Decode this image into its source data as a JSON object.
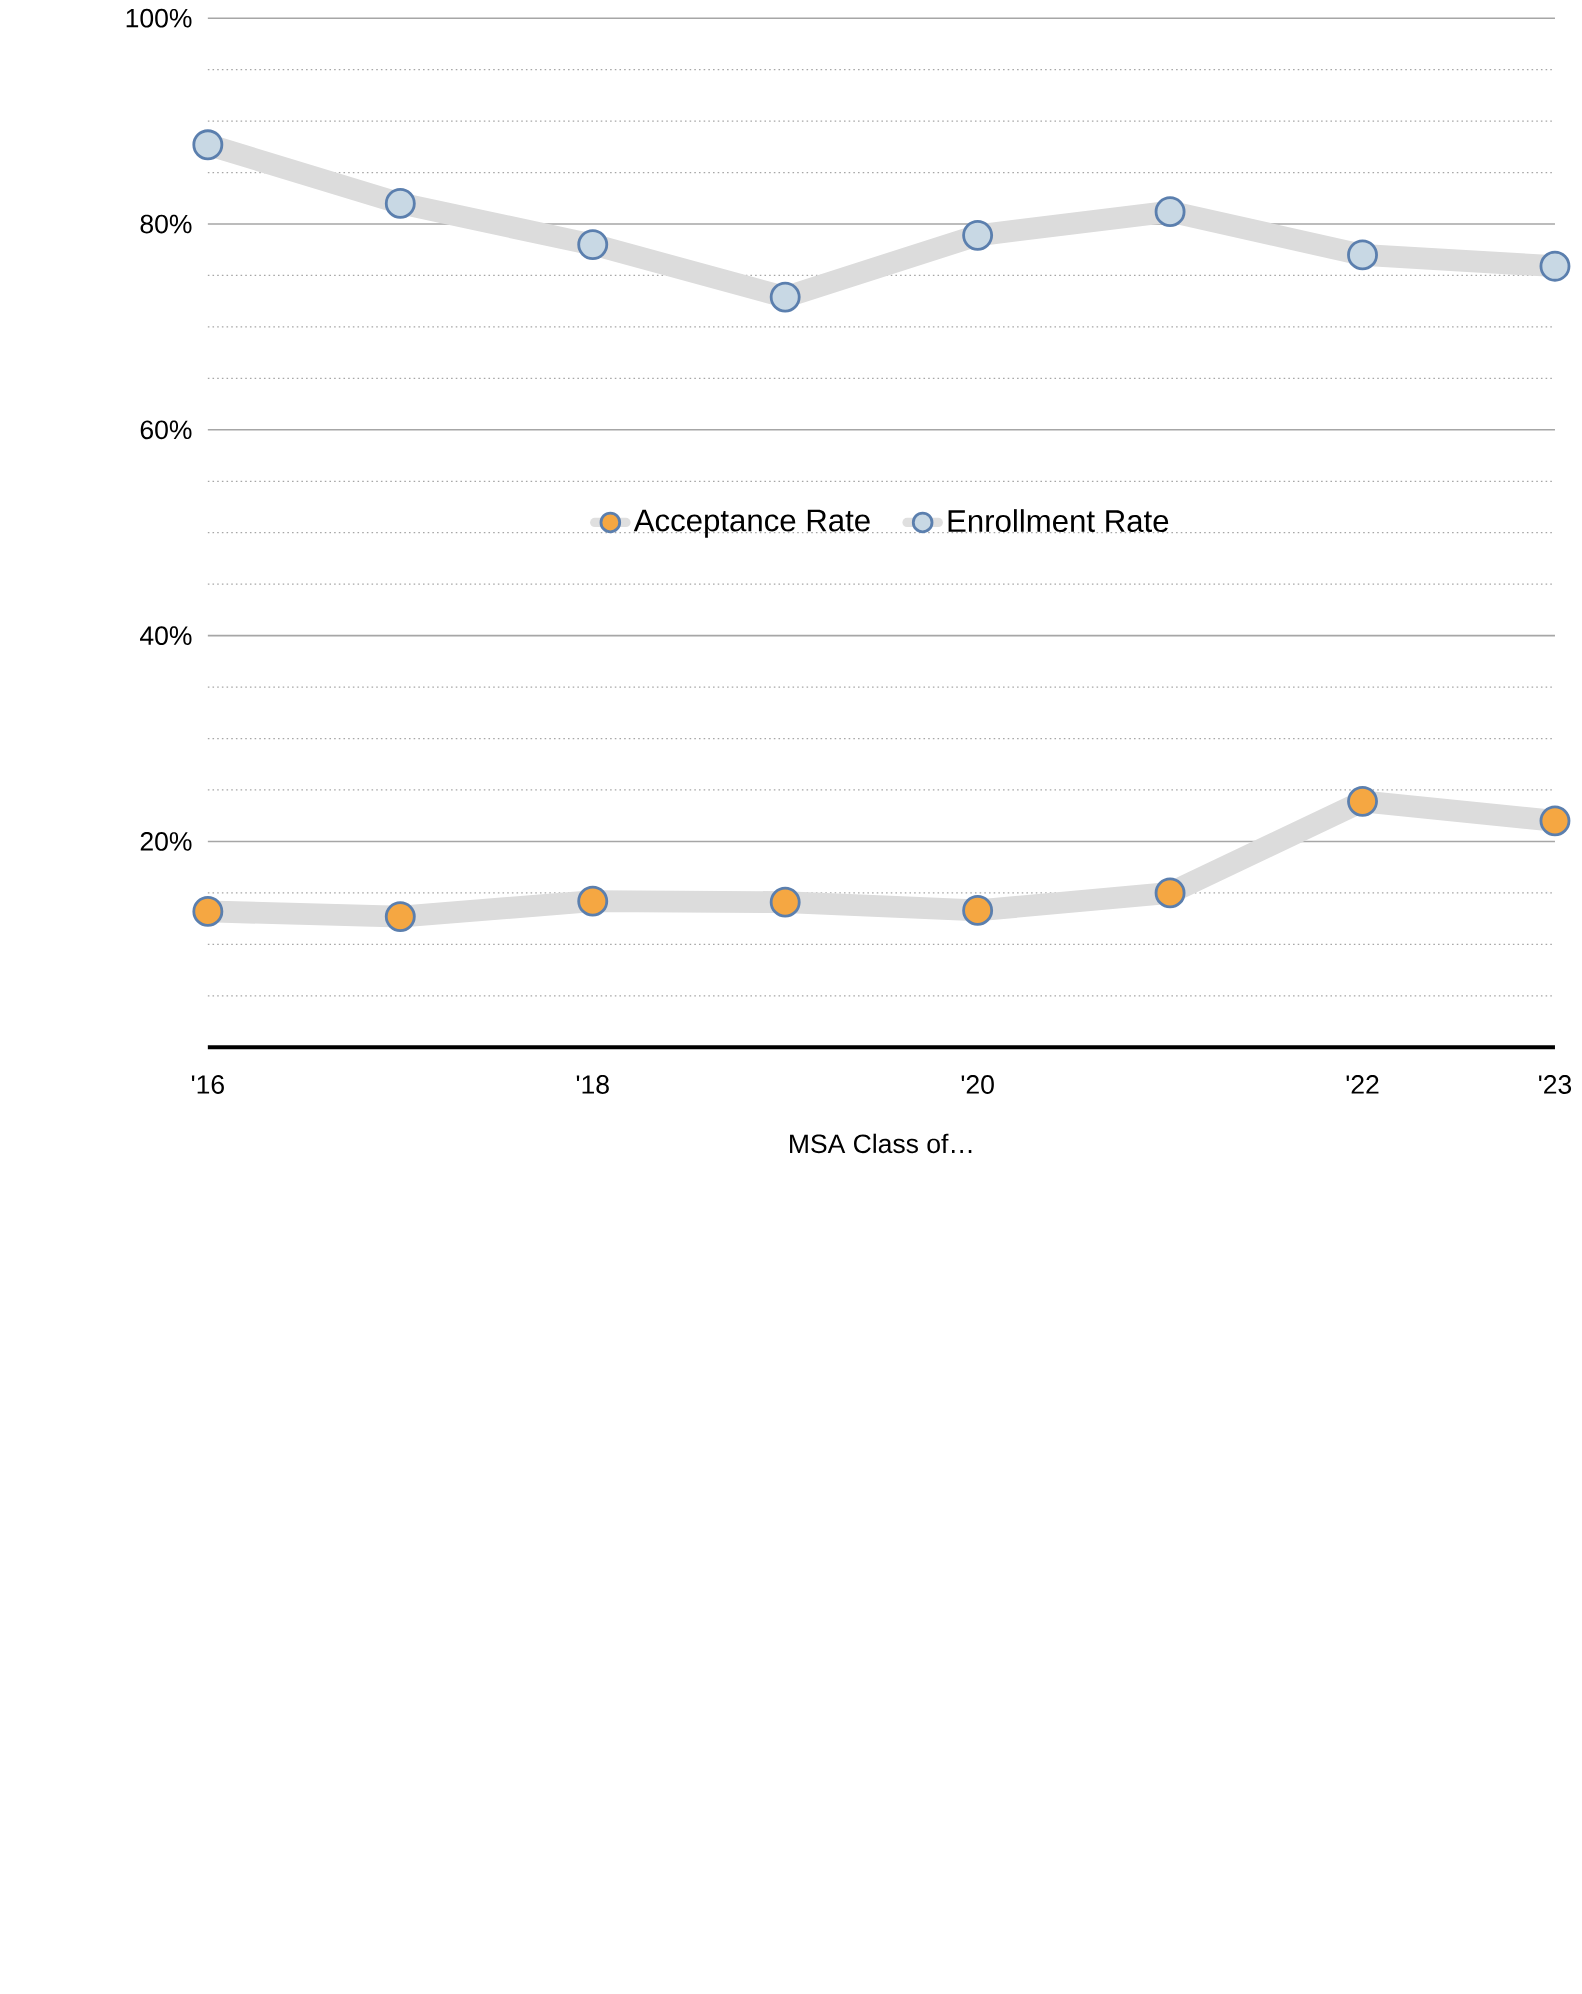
{
  "chart_data": {
    "type": "line",
    "xlabel": "MSA Class of…",
    "categories": [
      "'16",
      null,
      "'18",
      null,
      "'20",
      null,
      "'22",
      "'23"
    ],
    "series": [
      {
        "name": "Acceptance Rate",
        "color": "#f5a742",
        "values": [
          13.2,
          12.7,
          14.2,
          14.1,
          13.3,
          15.0,
          23.9,
          22.0
        ]
      },
      {
        "name": "Enrollment Rate",
        "color": "#c8d8e4",
        "values": [
          87.7,
          82.0,
          78.0,
          72.9,
          78.9,
          81.2,
          77.0,
          75.9
        ]
      }
    ],
    "ylim": [
      0,
      100
    ],
    "yticks": [
      {
        "value": 5,
        "label": null
      },
      {
        "value": 10,
        "label": null
      },
      {
        "value": 15,
        "label": null
      },
      {
        "value": 20,
        "label": "20%"
      },
      {
        "value": 25,
        "label": null
      },
      {
        "value": 30,
        "label": null
      },
      {
        "value": 35,
        "label": null
      },
      {
        "value": 40,
        "label": "40%"
      },
      {
        "value": 45,
        "label": null
      },
      {
        "value": 50,
        "label": null
      },
      {
        "value": 55,
        "label": null
      },
      {
        "value": 60,
        "label": "60%"
      },
      {
        "value": 65,
        "label": null
      },
      {
        "value": 70,
        "label": null
      },
      {
        "value": 75,
        "label": null
      },
      {
        "value": 80,
        "label": "80%"
      },
      {
        "value": 85,
        "label": null
      },
      {
        "value": 90,
        "label": null
      },
      {
        "value": 95,
        "label": null
      },
      {
        "value": 100,
        "label": "100%"
      }
    ],
    "grid": "y",
    "legend": "center",
    "marker": "circle",
    "line_style": "solid"
  }
}
